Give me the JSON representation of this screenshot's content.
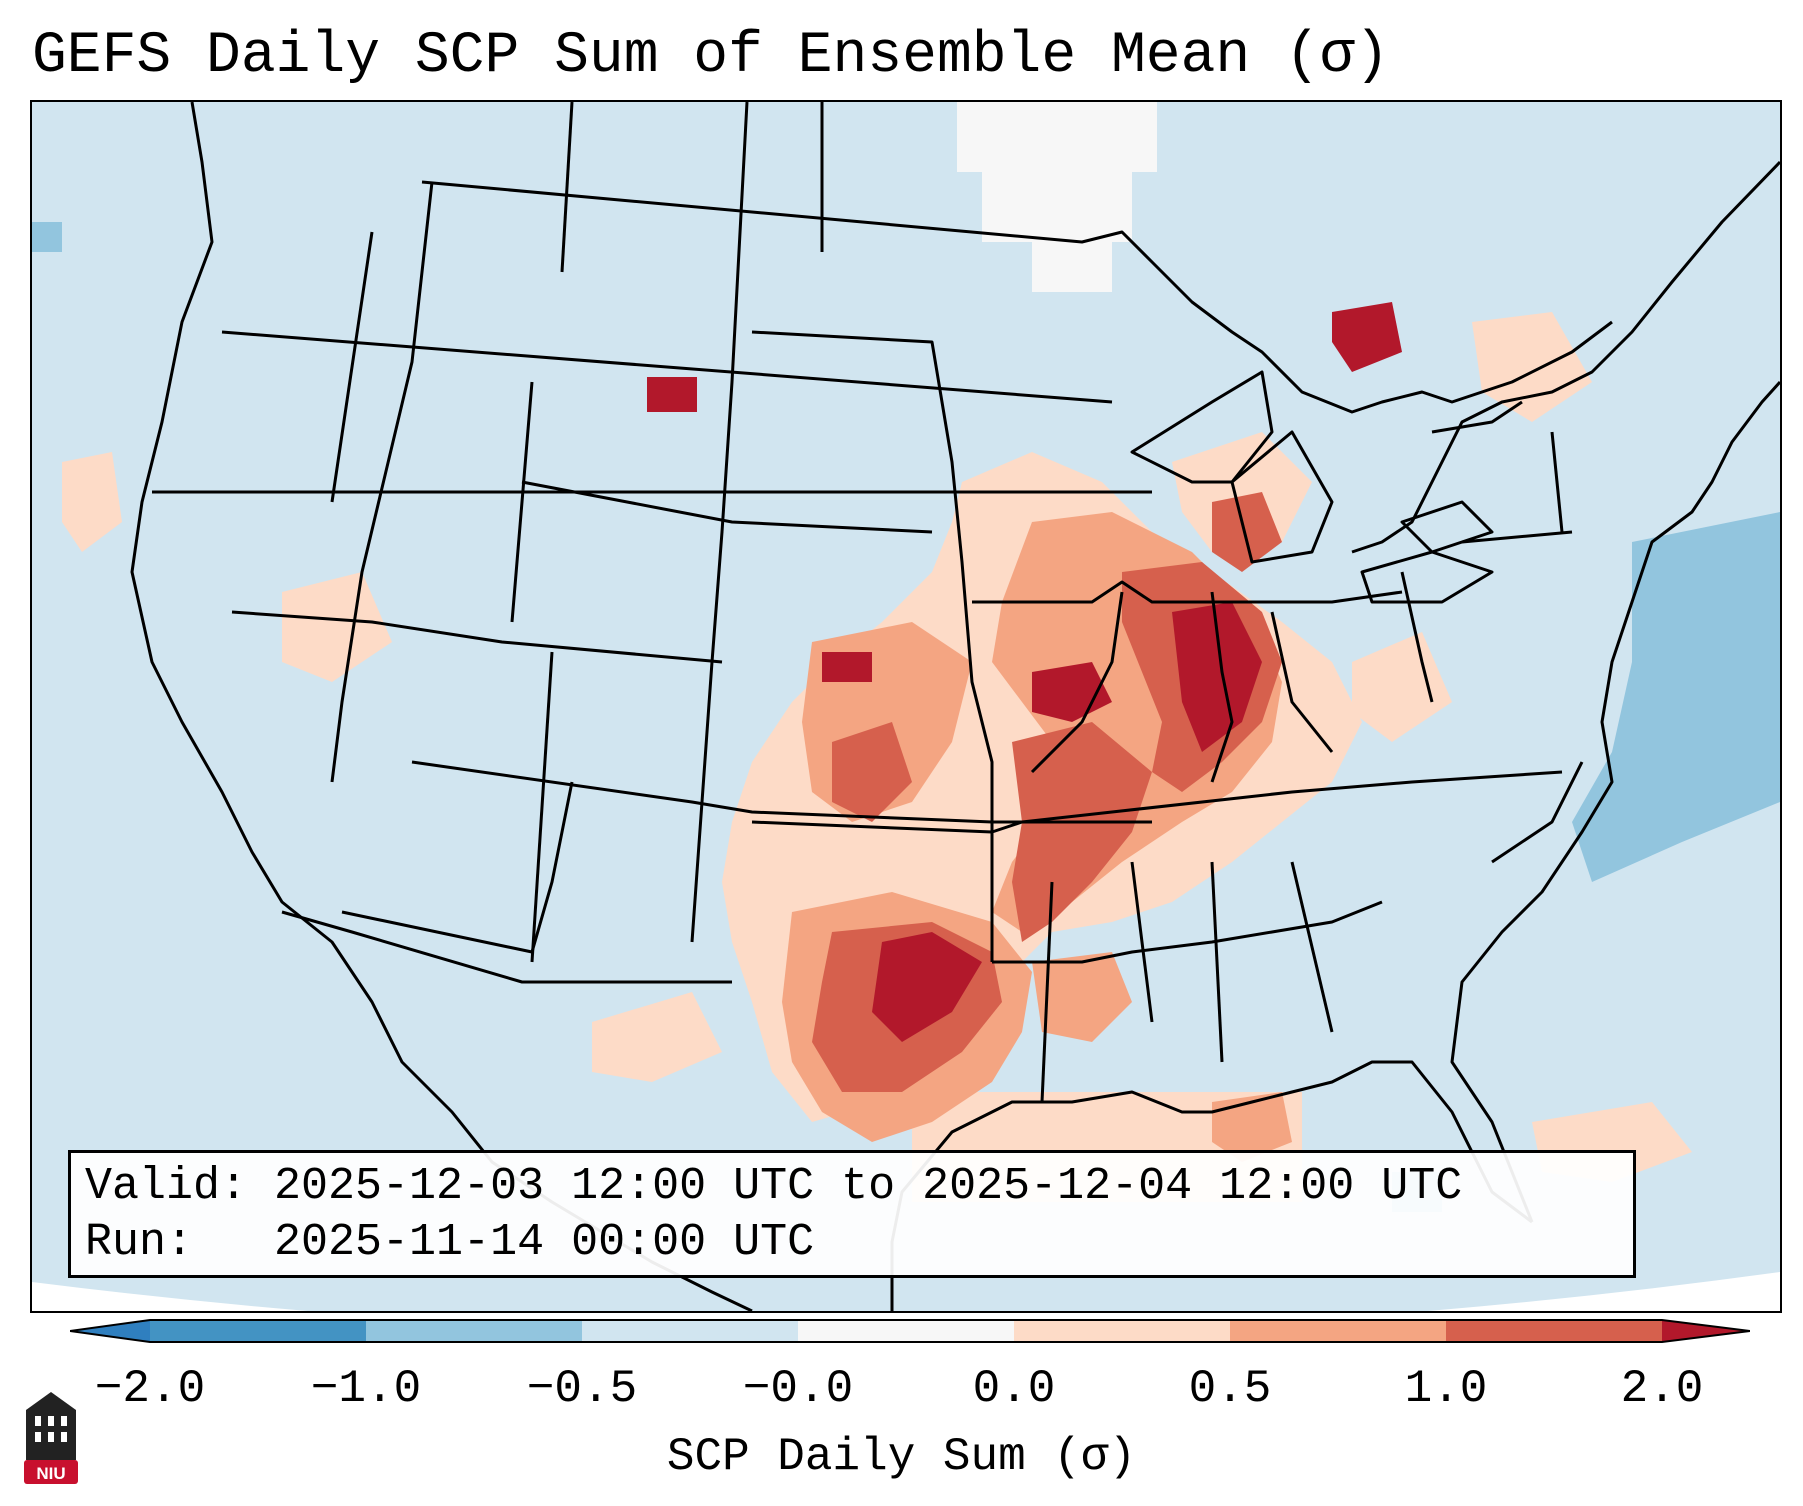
{
  "title": "GEFS Daily SCP Sum of Ensemble Mean (σ)",
  "info": {
    "valid_line": "Valid: 2025-12-03 12:00 UTC to 2025-12-04 12:00 UTC",
    "run_line": "Run:   2025-11-14 00:00 UTC"
  },
  "colorbar": {
    "label": "SCP Daily Sum (σ)",
    "ticks": [
      "−2.0",
      "−1.0",
      "−0.5",
      "−0.0",
      "0.0",
      "0.5",
      "1.0",
      "2.0"
    ],
    "colors": {
      "below_min": "#2f7fbf",
      "n2_n1": "#4393c3",
      "n1_n05": "#92c5de",
      "n05_0": "#d1e5f0",
      "zero_band": "#f7f7f7",
      "p0_05": "#fddbc7",
      "p05_1": "#f4a582",
      "p1_2": "#d6604d",
      "above_max": "#b2182b"
    }
  },
  "map": {
    "background_color": "#d1e5f0",
    "land_outline_color": "#000000"
  },
  "logo": {
    "text": "NIU",
    "colors": {
      "tower": "#222222",
      "badge": "#c8102e"
    }
  }
}
